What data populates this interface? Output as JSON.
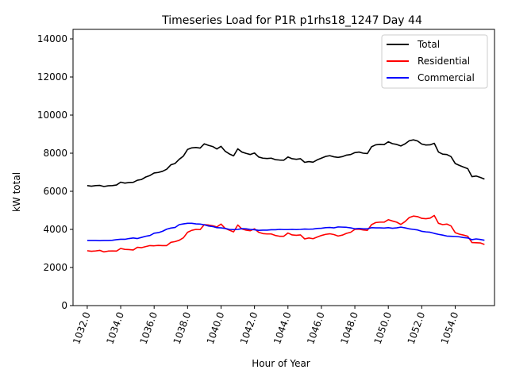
{
  "chart_data": {
    "type": "line",
    "title": "Timeseries Load for P1R p1rhs18_1247  Day 44",
    "xlabel": "Hour of Year",
    "ylabel": "kW total",
    "xlim": [
      1031.15,
      1056.35
    ],
    "ylim": [
      0,
      14500
    ],
    "x_ticks": [
      1032,
      1034,
      1036,
      1038,
      1040,
      1042,
      1044,
      1046,
      1048,
      1050,
      1052,
      1054
    ],
    "x_tick_labels": [
      "1032.0",
      "1034.0",
      "1036.0",
      "1038.0",
      "1040.0",
      "1042.0",
      "1044.0",
      "1046.0",
      "1048.0",
      "1050.0",
      "1052.0",
      "1054.0"
    ],
    "y_ticks": [
      0,
      2000,
      4000,
      6000,
      8000,
      10000,
      12000,
      14000
    ],
    "y_tick_labels": [
      "0",
      "2000",
      "4000",
      "6000",
      "8000",
      "10000",
      "12000",
      "14000"
    ],
    "legend_position": "top-right",
    "x": [
      1032.0,
      1032.25,
      1032.5,
      1032.75,
      1033.0,
      1033.25,
      1033.5,
      1033.75,
      1034.0,
      1034.25,
      1034.5,
      1034.75,
      1035.0,
      1035.25,
      1035.5,
      1035.75,
      1036.0,
      1036.25,
      1036.5,
      1036.75,
      1037.0,
      1037.25,
      1037.5,
      1037.75,
      1038.0,
      1038.25,
      1038.5,
      1038.75,
      1039.0,
      1039.25,
      1039.5,
      1039.75,
      1040.0,
      1040.25,
      1040.5,
      1040.75,
      1041.0,
      1041.25,
      1041.5,
      1041.75,
      1042.0,
      1042.25,
      1042.5,
      1042.75,
      1043.0,
      1043.25,
      1043.5,
      1043.75,
      1044.0,
      1044.25,
      1044.5,
      1044.75,
      1045.0,
      1045.25,
      1045.5,
      1045.75,
      1046.0,
      1046.25,
      1046.5,
      1046.75,
      1047.0,
      1047.25,
      1047.5,
      1047.75,
      1048.0,
      1048.25,
      1048.5,
      1048.75,
      1049.0,
      1049.25,
      1049.5,
      1049.75,
      1050.0,
      1050.25,
      1050.5,
      1050.75,
      1051.0,
      1051.25,
      1051.5,
      1051.75,
      1052.0,
      1052.25,
      1052.5,
      1052.75,
      1053.0,
      1053.25,
      1053.5,
      1053.75,
      1054.0,
      1054.25,
      1054.5,
      1054.75,
      1055.0,
      1055.25,
      1055.5,
      1055.75
    ],
    "series": [
      {
        "name": "Total",
        "color": "#000000",
        "values": [
          6300,
          6270,
          6300,
          6310,
          6250,
          6290,
          6300,
          6330,
          6480,
          6430,
          6460,
          6470,
          6580,
          6620,
          6750,
          6830,
          6960,
          6990,
          7050,
          7160,
          7390,
          7460,
          7680,
          7850,
          8200,
          8280,
          8300,
          8270,
          8490,
          8410,
          8350,
          8220,
          8360,
          8100,
          7960,
          7860,
          8230,
          8060,
          7990,
          7930,
          8010,
          7800,
          7740,
          7720,
          7740,
          7660,
          7640,
          7630,
          7800,
          7710,
          7680,
          7710,
          7520,
          7560,
          7530,
          7650,
          7740,
          7830,
          7870,
          7810,
          7780,
          7820,
          7900,
          7930,
          8030,
          8060,
          8000,
          7980,
          8340,
          8440,
          8460,
          8450,
          8600,
          8500,
          8460,
          8380,
          8490,
          8650,
          8700,
          8640,
          8480,
          8430,
          8440,
          8520,
          8060,
          7950,
          7930,
          7820,
          7460,
          7360,
          7270,
          7190,
          6770,
          6800,
          6730,
          6640
        ]
      },
      {
        "name": "Residential",
        "color": "#ff0000",
        "values": [
          2880,
          2850,
          2870,
          2900,
          2820,
          2860,
          2870,
          2860,
          3000,
          2950,
          2940,
          2920,
          3060,
          3040,
          3100,
          3150,
          3140,
          3160,
          3150,
          3150,
          3320,
          3360,
          3430,
          3560,
          3850,
          3950,
          4000,
          3990,
          4250,
          4230,
          4190,
          4130,
          4280,
          4050,
          3960,
          3870,
          4230,
          4020,
          3960,
          3930,
          4030,
          3850,
          3780,
          3760,
          3760,
          3680,
          3640,
          3640,
          3810,
          3710,
          3690,
          3710,
          3500,
          3550,
          3510,
          3600,
          3680,
          3740,
          3770,
          3730,
          3650,
          3700,
          3790,
          3850,
          4000,
          4010,
          3970,
          3950,
          4250,
          4360,
          4380,
          4380,
          4510,
          4440,
          4380,
          4260,
          4410,
          4620,
          4700,
          4670,
          4580,
          4560,
          4590,
          4730,
          4320,
          4250,
          4280,
          4180,
          3830,
          3750,
          3700,
          3640,
          3310,
          3300,
          3290,
          3210
        ]
      },
      {
        "name": "Commercial",
        "color": "#0000ff",
        "values": [
          3420,
          3420,
          3420,
          3410,
          3420,
          3420,
          3430,
          3460,
          3480,
          3480,
          3520,
          3550,
          3520,
          3580,
          3640,
          3680,
          3800,
          3830,
          3900,
          4010,
          4070,
          4100,
          4250,
          4290,
          4320,
          4320,
          4290,
          4280,
          4240,
          4180,
          4150,
          4090,
          4080,
          4050,
          4000,
          3990,
          4000,
          4040,
          4030,
          4000,
          3980,
          3950,
          3960,
          3960,
          3980,
          3980,
          4000,
          3990,
          3990,
          4000,
          3990,
          4000,
          4020,
          4010,
          4020,
          4050,
          4060,
          4090,
          4100,
          4080,
          4130,
          4120,
          4110,
          4080,
          4030,
          4050,
          4030,
          4030,
          4090,
          4080,
          4080,
          4070,
          4090,
          4060,
          4080,
          4120,
          4080,
          4030,
          4000,
          3970,
          3900,
          3870,
          3850,
          3790,
          3740,
          3700,
          3650,
          3640,
          3630,
          3610,
          3570,
          3550,
          3460,
          3500,
          3470,
          3430
        ]
      }
    ]
  }
}
